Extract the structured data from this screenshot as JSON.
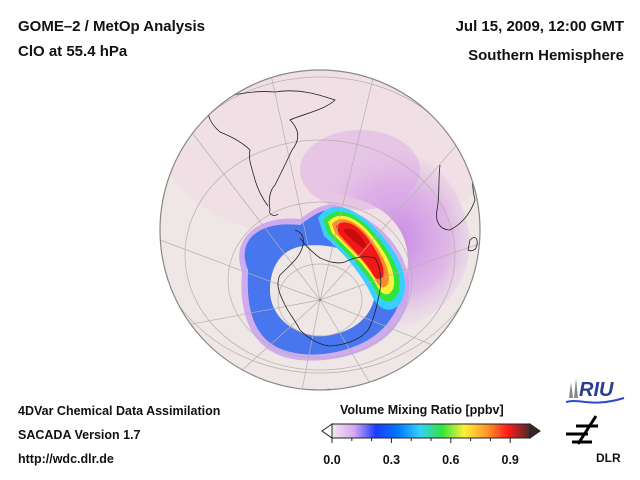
{
  "header": {
    "title_line1": "GOME–2 / MetOp Analysis",
    "title_line2": "ClO at 55.4 hPa",
    "datetime": "Jul 15, 2009, 12:00 GMT",
    "region": "Southern Hemisphere"
  },
  "footer": {
    "line1": "4DVar Chemical Data Assimilation",
    "line2": "SACADA Version 1.7",
    "line3": "http://wdc.dlr.de"
  },
  "colorbar": {
    "title": "Volume Mixing Ratio [ppbv]",
    "range": [
      0.0,
      1.0
    ],
    "tick_labels": [
      "0.0",
      "0.3",
      "0.6",
      "0.9"
    ],
    "tick_values": [
      0.0,
      0.3,
      0.6,
      0.9
    ],
    "minor_ticks": [
      0.1,
      0.2,
      0.4,
      0.5,
      0.7,
      0.8
    ],
    "colors": [
      "#f4e8ee",
      "#d6a8f0",
      "#1a3cff",
      "#0078ff",
      "#35d0ff",
      "#33e33b",
      "#fcf03a",
      "#ff9b2a",
      "#ff1a1a",
      "#4a2a2a"
    ],
    "extend": "both"
  },
  "map": {
    "projection": "orthographic, south pole view",
    "species": "ClO",
    "pressure_level": "55.4 hPa",
    "features": [
      "South America",
      "Antarctica",
      "Africa",
      "Antarctic Peninsula",
      "polar vortex ClO enhancement"
    ],
    "max_region_value_ppbv": 0.9
  },
  "logos": {
    "riu": "RIU",
    "dlr": "DLR"
  }
}
